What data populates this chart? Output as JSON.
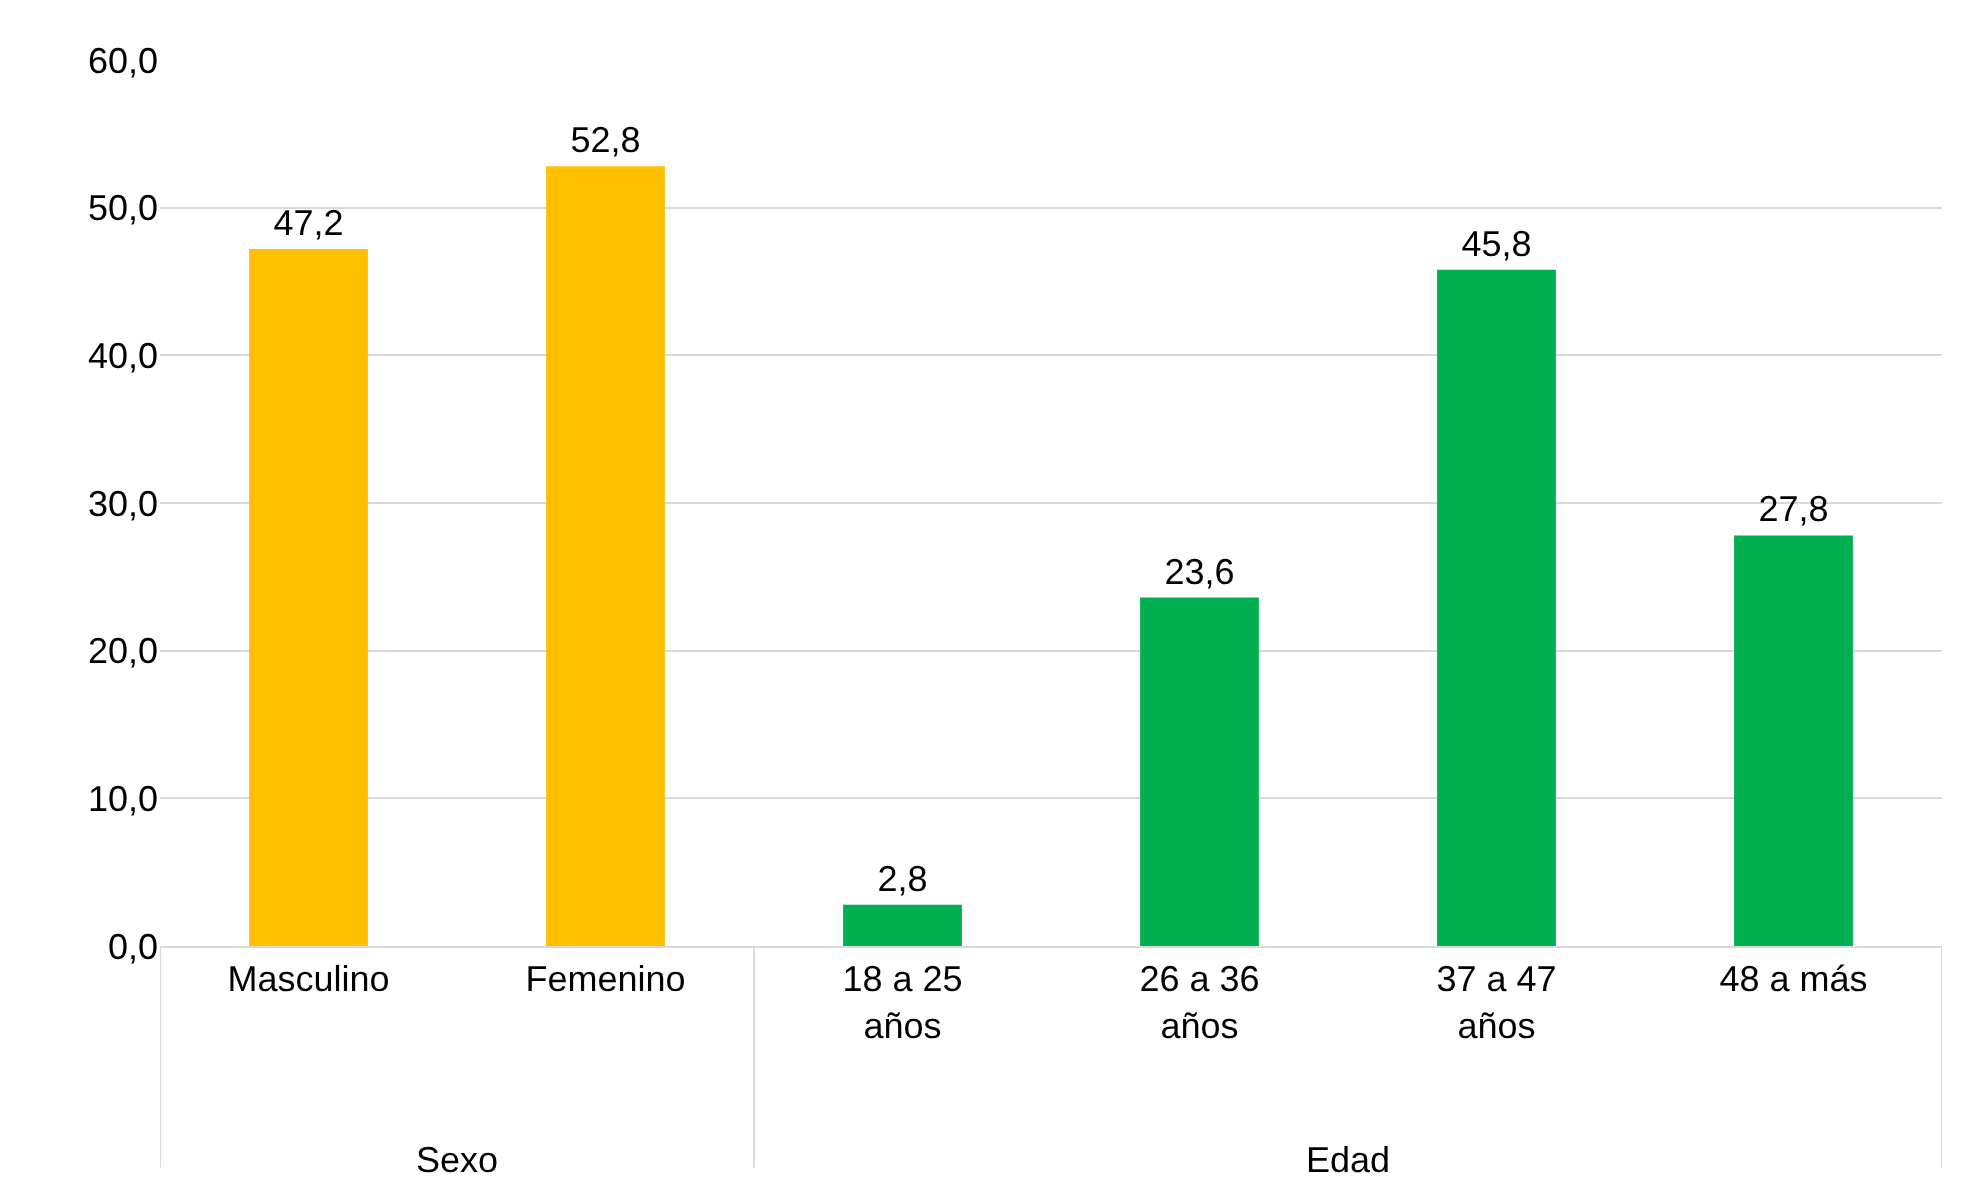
{
  "chart_data": {
    "type": "bar",
    "categories": [
      "Masculino",
      "Femenino",
      "18 a 25 años",
      "26 a 36 años",
      "37 a 47 años",
      "48 a más"
    ],
    "values": [
      47.2,
      52.8,
      2.8,
      23.6,
      45.8,
      27.8
    ],
    "colors": [
      "#ffc000",
      "#ffc000",
      "#00b050",
      "#00b050",
      "#00b050",
      "#00b050"
    ],
    "value_labels": [
      "47,2",
      "52,8",
      "2,8",
      "23,6",
      "45,8",
      "27,8"
    ],
    "ylim": [
      0,
      60
    ],
    "yticks": [
      {
        "value": 0,
        "label": "0,0"
      },
      {
        "value": 10,
        "label": "10,0"
      },
      {
        "value": 20,
        "label": "20,0"
      },
      {
        "value": 30,
        "label": "30,0"
      },
      {
        "value": 40,
        "label": "40,0"
      },
      {
        "value": 50,
        "label": "50,0"
      },
      {
        "value": 60,
        "label": "60,0"
      }
    ],
    "grid": "y",
    "legend": false,
    "annotations": [
      "Sexo",
      "Edad"
    ]
  }
}
